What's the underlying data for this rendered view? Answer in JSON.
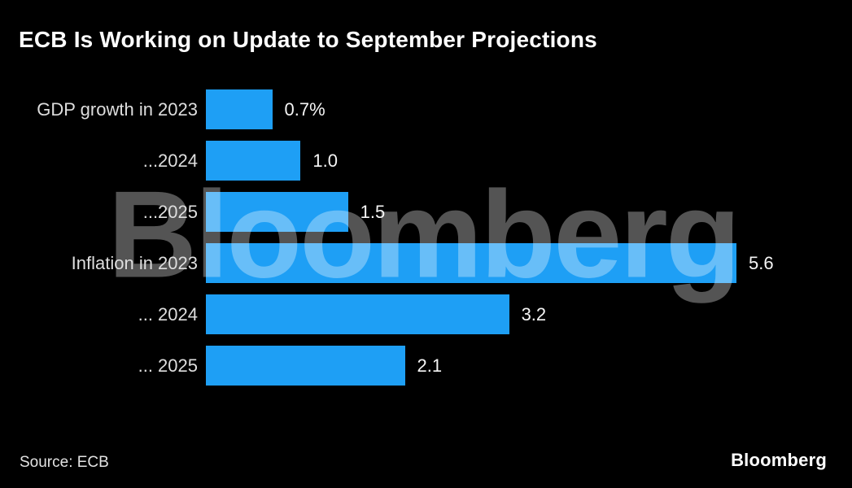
{
  "meta": {
    "title": "ECB Is Working on Update to September Projections",
    "source_label": "Source: ECB",
    "brand_logo": "Bloomberg",
    "watermark": "Bloomberg"
  },
  "colors": {
    "background": "#000000",
    "bar": "#1E9FF5",
    "title_text": "#FFFFFF",
    "category_text": "#DEDEDE",
    "value_text": "#F5F5F5",
    "watermark": "rgba(255,255,255,0.33)"
  },
  "chart_data": {
    "type": "bar",
    "orientation": "horizontal",
    "title": "ECB Is Working on Update to September Projections",
    "categories": [
      "GDP growth in 2023",
      "...2024",
      "...2025",
      "Inflation in 2023",
      "... 2024",
      "... 2025"
    ],
    "values": [
      0.7,
      1.0,
      1.5,
      5.6,
      3.2,
      2.1
    ],
    "value_labels": [
      "0.7%",
      "1.0",
      "1.5",
      "5.6",
      "3.2",
      "2.1"
    ],
    "unit": "percent",
    "xlim": [
      0,
      5.6
    ],
    "grid": false,
    "legend": false,
    "source": "ECB"
  }
}
